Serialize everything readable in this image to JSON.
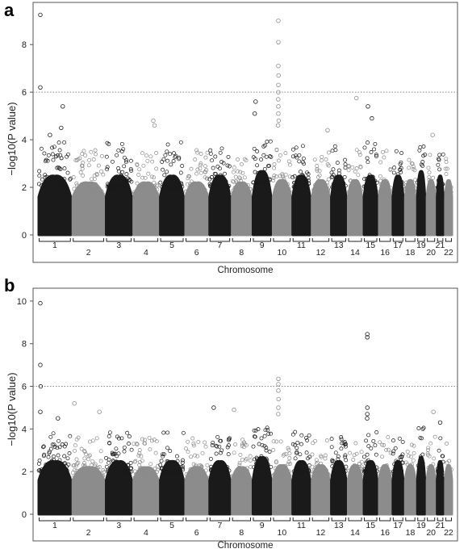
{
  "panels": [
    {
      "letter": "a"
    },
    {
      "letter": "b"
    }
  ],
  "chart_data": [
    {
      "type": "scatter",
      "panel": "a",
      "xlabel": "Chromosome",
      "ylabel": "−log10(P value)",
      "ylim": [
        0,
        9.5
      ],
      "yticks": [
        "0",
        "2",
        "4",
        "6",
        "8"
      ],
      "threshold": 6,
      "threshold_style": "dotted",
      "grid": false,
      "colors": [
        "#1a1a1a",
        "#8c8c8c"
      ],
      "chromosomes": [
        "1",
        "2",
        "3",
        "4",
        "5",
        "6",
        "7",
        "8",
        "9",
        "10",
        "11",
        "12",
        "13",
        "14",
        "15",
        "16",
        "17",
        "18",
        "19",
        "20",
        "21",
        "22"
      ],
      "bulk_max": [
        2.6,
        2.3,
        2.6,
        2.3,
        2.6,
        2.3,
        2.6,
        2.3,
        2.8,
        2.4,
        2.6,
        2.4,
        2.6,
        2.4,
        2.6,
        2.4,
        2.6,
        2.4,
        2.8,
        2.4,
        2.6,
        2.4
      ],
      "top_points": [
        {
          "chr": 1,
          "pos": 0.05,
          "value": 9.25
        },
        {
          "chr": 1,
          "pos": 0.05,
          "value": 6.2
        },
        {
          "chr": 1,
          "pos": 0.75,
          "value": 5.4
        },
        {
          "chr": 1,
          "pos": 0.7,
          "value": 4.5
        },
        {
          "chr": 1,
          "pos": 0.35,
          "value": 4.2
        },
        {
          "chr": 4,
          "pos": 0.8,
          "value": 4.8
        },
        {
          "chr": 4,
          "pos": 0.85,
          "value": 4.6
        },
        {
          "chr": 9,
          "pos": 0.15,
          "value": 5.6
        },
        {
          "chr": 9,
          "pos": 0.1,
          "value": 5.1
        },
        {
          "chr": 10,
          "pos": 0.3,
          "value": 9.0
        },
        {
          "chr": 10,
          "pos": 0.3,
          "value": 8.1
        },
        {
          "chr": 10,
          "pos": 0.3,
          "value": 7.1
        },
        {
          "chr": 10,
          "pos": 0.31,
          "value": 6.7
        },
        {
          "chr": 10,
          "pos": 0.3,
          "value": 6.3
        },
        {
          "chr": 10,
          "pos": 0.3,
          "value": 6.0
        },
        {
          "chr": 10,
          "pos": 0.29,
          "value": 5.7
        },
        {
          "chr": 10,
          "pos": 0.3,
          "value": 5.4
        },
        {
          "chr": 10,
          "pos": 0.3,
          "value": 5.1
        },
        {
          "chr": 10,
          "pos": 0.32,
          "value": 4.8
        },
        {
          "chr": 10,
          "pos": 0.28,
          "value": 4.6
        },
        {
          "chr": 12,
          "pos": 0.9,
          "value": 4.4
        },
        {
          "chr": 14,
          "pos": 0.6,
          "value": 5.75
        },
        {
          "chr": 15,
          "pos": 0.3,
          "value": 5.4
        },
        {
          "chr": 15,
          "pos": 0.6,
          "value": 4.9
        },
        {
          "chr": 20,
          "pos": 0.7,
          "value": 4.2
        }
      ]
    },
    {
      "type": "scatter",
      "panel": "b",
      "xlabel": "Chromosome",
      "ylabel": "−log10(P value)",
      "ylim": [
        0,
        10.3
      ],
      "yticks": [
        "0",
        "2",
        "4",
        "6",
        "8",
        "10"
      ],
      "threshold": 6,
      "threshold_style": "dotted",
      "grid": false,
      "colors": [
        "#1a1a1a",
        "#8c8c8c"
      ],
      "chromosomes": [
        "1",
        "2",
        "3",
        "4",
        "5",
        "6",
        "7",
        "8",
        "9",
        "10",
        "11",
        "12",
        "13",
        "14",
        "15",
        "16",
        "17",
        "18",
        "19",
        "20",
        "21",
        "22"
      ],
      "bulk_max": [
        2.6,
        2.3,
        2.6,
        2.3,
        2.6,
        2.3,
        2.6,
        2.3,
        2.8,
        2.4,
        2.6,
        2.4,
        2.6,
        2.4,
        2.6,
        2.4,
        2.6,
        2.4,
        2.8,
        2.4,
        2.6,
        2.4
      ],
      "top_points": [
        {
          "chr": 1,
          "pos": 0.05,
          "value": 9.9
        },
        {
          "chr": 1,
          "pos": 0.05,
          "value": 7.0
        },
        {
          "chr": 1,
          "pos": 0.06,
          "value": 6.0
        },
        {
          "chr": 1,
          "pos": 0.05,
          "value": 4.8
        },
        {
          "chr": 1,
          "pos": 0.6,
          "value": 4.5
        },
        {
          "chr": 2,
          "pos": 0.05,
          "value": 5.2
        },
        {
          "chr": 2,
          "pos": 0.85,
          "value": 4.8
        },
        {
          "chr": 7,
          "pos": 0.2,
          "value": 5.0
        },
        {
          "chr": 8,
          "pos": 0.1,
          "value": 4.9
        },
        {
          "chr": 10,
          "pos": 0.3,
          "value": 6.35
        },
        {
          "chr": 10,
          "pos": 0.3,
          "value": 6.1
        },
        {
          "chr": 10,
          "pos": 0.3,
          "value": 5.8
        },
        {
          "chr": 10,
          "pos": 0.31,
          "value": 5.4
        },
        {
          "chr": 10,
          "pos": 0.3,
          "value": 5.0
        },
        {
          "chr": 10,
          "pos": 0.29,
          "value": 4.7
        },
        {
          "chr": 15,
          "pos": 0.25,
          "value": 8.45
        },
        {
          "chr": 15,
          "pos": 0.25,
          "value": 8.3
        },
        {
          "chr": 15,
          "pos": 0.26,
          "value": 5.0
        },
        {
          "chr": 15,
          "pos": 0.25,
          "value": 4.7
        },
        {
          "chr": 15,
          "pos": 0.24,
          "value": 4.5
        },
        {
          "chr": 20,
          "pos": 0.8,
          "value": 4.8
        },
        {
          "chr": 21,
          "pos": 0.5,
          "value": 4.3
        }
      ]
    }
  ]
}
